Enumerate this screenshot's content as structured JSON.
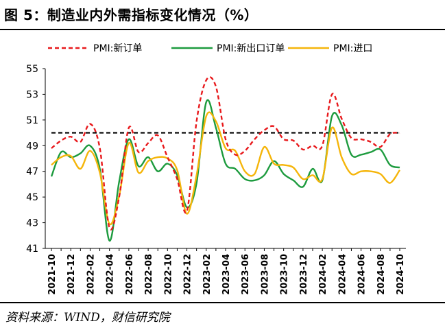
{
  "figure": {
    "title": "图 5：制造业内外需指标变化情况（%）",
    "source": "资料来源：WIND，财信研究院"
  },
  "chart_data": {
    "type": "line",
    "ylim": [
      41,
      55
    ],
    "yticks": [
      41,
      43,
      45,
      47,
      49,
      51,
      53,
      55
    ],
    "grid": false,
    "legend_position": "top",
    "x": [
      "2021-10",
      "2021-11",
      "2021-12",
      "2022-01",
      "2022-02",
      "2022-03",
      "2022-04",
      "2022-05",
      "2022-06",
      "2022-07",
      "2022-08",
      "2022-09",
      "2022-10",
      "2022-11",
      "2022-12",
      "2023-01",
      "2023-02",
      "2023-03",
      "2023-04",
      "2023-05",
      "2023-06",
      "2023-07",
      "2023-08",
      "2023-09",
      "2023-10",
      "2023-11",
      "2023-12",
      "2024-01",
      "2024-02",
      "2024-03",
      "2024-04",
      "2024-05",
      "2024-06",
      "2024-07",
      "2024-08",
      "2024-09",
      "2024-10"
    ],
    "xtick_labels": [
      "2021-10",
      "2021-12",
      "2022-02",
      "2022-04",
      "2022-06",
      "2022-08",
      "2022-10",
      "2022-12",
      "2023-02",
      "2023-04",
      "2023-06",
      "2023-08",
      "2023-10",
      "2023-12",
      "2024-02",
      "2024-04",
      "2024-06",
      "2024-08",
      "2024-10"
    ],
    "reference_line": {
      "value": 50,
      "color": "#000000",
      "style": "dashed"
    },
    "series": [
      {
        "name": "PMI:新订单",
        "color": "#e8191c",
        "style": "dashed",
        "values": [
          48.8,
          49.4,
          49.7,
          49.3,
          50.7,
          48.8,
          42.6,
          45.0,
          50.4,
          48.5,
          49.2,
          49.8,
          48.1,
          46.4,
          43.9,
          50.9,
          54.1,
          53.6,
          49.5,
          48.3,
          48.6,
          49.5,
          50.2,
          50.5,
          49.5,
          49.4,
          48.7,
          49.0,
          49.0,
          53.0,
          51.1,
          49.6,
          49.5,
          49.3,
          48.9,
          49.9,
          50.0
        ]
      },
      {
        "name": "PMI:新出口订单",
        "color": "#1d9b3e",
        "style": "solid",
        "values": [
          46.6,
          48.5,
          48.1,
          48.4,
          49.0,
          47.2,
          41.6,
          46.2,
          49.5,
          47.4,
          48.1,
          47.0,
          47.6,
          46.7,
          44.2,
          46.1,
          52.4,
          50.4,
          47.6,
          47.2,
          46.4,
          46.3,
          46.7,
          47.8,
          46.8,
          46.3,
          45.8,
          47.2,
          46.3,
          51.3,
          50.6,
          48.3,
          48.3,
          48.5,
          48.7,
          47.5,
          47.3
        ]
      },
      {
        "name": "PMI:进口",
        "color": "#f5b50a",
        "style": "solid",
        "values": [
          47.5,
          48.1,
          48.2,
          47.2,
          48.6,
          46.9,
          42.9,
          45.1,
          49.2,
          46.9,
          47.8,
          48.1,
          48.0,
          47.1,
          43.7,
          46.7,
          51.3,
          50.9,
          48.8,
          48.6,
          47.0,
          46.8,
          48.9,
          47.6,
          47.5,
          47.3,
          46.4,
          46.7,
          46.4,
          50.4,
          48.1,
          46.8,
          47.0,
          47.0,
          46.8,
          46.1,
          47.1
        ]
      }
    ]
  }
}
